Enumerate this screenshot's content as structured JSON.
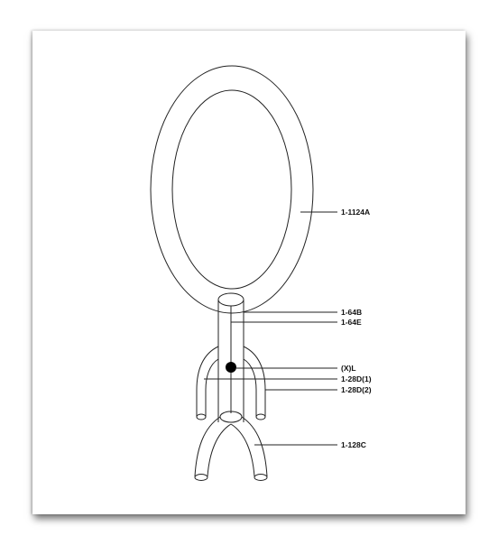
{
  "diagram": {
    "labels": {
      "ring": "1-1124A",
      "cable_b": "1-64B",
      "cable_e": "1-64E",
      "link": "(X)L",
      "leg_d1": "1-28D(1)",
      "leg_d2": "1-28D(2)",
      "base_c": "1-128C"
    }
  }
}
